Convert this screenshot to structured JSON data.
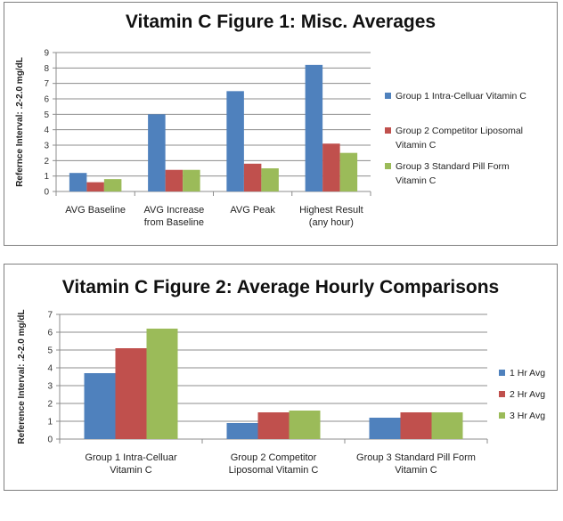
{
  "chart_data": [
    {
      "type": "bar",
      "title": "Vitamin C Figure 1: Misc. Averages",
      "ylabel": "Refernce Interval:   .2-2.0 mg/dL",
      "xlabel": "",
      "ylim": [
        0,
        9
      ],
      "yticks": [
        "0",
        "1",
        "2",
        "3",
        "4",
        "5",
        "6",
        "7",
        "8",
        "9"
      ],
      "categories": [
        [
          "AVG Baseline"
        ],
        [
          "AVG Increase",
          "from Baseline"
        ],
        [
          "AVG Peak"
        ],
        [
          "Highest Result",
          "(any hour)"
        ]
      ],
      "series": [
        {
          "name": "Group 1 Intra-Celluar Vitamin  C",
          "legend_lines": [
            "Group 1 Intra-Celluar Vitamin  C"
          ],
          "color": "#4f81bd",
          "values": [
            1.2,
            5.0,
            6.5,
            8.2
          ]
        },
        {
          "name": "Group 2 Competitor Liposomal Vitamin C",
          "legend_lines": [
            "Group 2 Competitor Liposomal",
            "Vitamin  C"
          ],
          "color": "#c0504d",
          "values": [
            0.6,
            1.4,
            1.8,
            3.1
          ]
        },
        {
          "name": "Group 3 Standard Pill Form Vitamin C",
          "legend_lines": [
            "Group 3 Standard Pill Form",
            "Vitamin  C"
          ],
          "color": "#9bbb59",
          "values": [
            0.8,
            1.4,
            1.5,
            2.5
          ]
        }
      ],
      "grid": true,
      "legend": "right"
    },
    {
      "type": "bar",
      "title": "Vitamin C Figure 2: Average Hourly Comparisons",
      "ylabel": "Reference Interval:   .2-2.0 mg/dL",
      "xlabel": "",
      "ylim": [
        0,
        7
      ],
      "yticks": [
        "0",
        "1",
        "2",
        "3",
        "4",
        "5",
        "6",
        "7"
      ],
      "categories": [
        [
          "Group 1 Intra-Celluar",
          "Vitamin  C"
        ],
        [
          "Group 2 Competitor",
          "Liposomal Vitamin  C"
        ],
        [
          "Group 3 Standard Pill Form",
          "Vitamin  C"
        ]
      ],
      "series": [
        {
          "name": "1 Hr Avg",
          "legend_lines": [
            "1 Hr Avg"
          ],
          "color": "#4f81bd",
          "values": [
            3.7,
            0.9,
            1.2
          ]
        },
        {
          "name": "2 Hr Avg",
          "legend_lines": [
            "2 Hr Avg"
          ],
          "color": "#c0504d",
          "values": [
            5.1,
            1.5,
            1.5
          ]
        },
        {
          "name": "3 Hr Avg",
          "legend_lines": [
            "3 Hr Avg"
          ],
          "color": "#9bbb59",
          "values": [
            6.2,
            1.6,
            1.5
          ]
        }
      ],
      "grid": true,
      "legend": "right"
    }
  ]
}
